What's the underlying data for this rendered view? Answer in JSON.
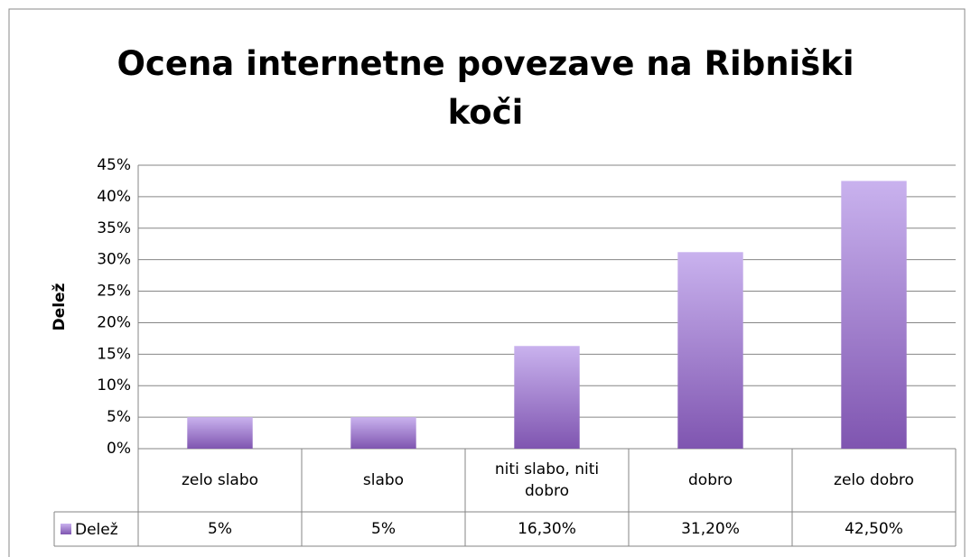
{
  "chart_data": {
    "type": "bar",
    "title": "Ocena internetne povezave na Ribniški koči",
    "y_label": "Delež",
    "categories": [
      "zelo slabo",
      "slabo",
      "niti slabo, niti dobro",
      "dobro",
      "zelo dobro"
    ],
    "series": [
      {
        "name": "Delež",
        "color": "#7f55b0",
        "values": [
          5,
          5,
          16.3,
          31.2,
          42.5
        ],
        "value_labels": [
          "5%",
          "5%",
          "16,30%",
          "31,20%",
          "42,50%"
        ]
      }
    ],
    "ylim": [
      0,
      45
    ],
    "yticks": [
      {
        "value": 0,
        "label": "0%"
      },
      {
        "value": 5,
        "label": "5%"
      },
      {
        "value": 10,
        "label": "10%"
      },
      {
        "value": 15,
        "label": "15%"
      },
      {
        "value": 20,
        "label": "20%"
      },
      {
        "value": 25,
        "label": "25%"
      },
      {
        "value": 30,
        "label": "30%"
      },
      {
        "value": 35,
        "label": "35%"
      },
      {
        "value": 40,
        "label": "40%"
      },
      {
        "value": 45,
        "label": "45%"
      }
    ],
    "grid": true
  }
}
